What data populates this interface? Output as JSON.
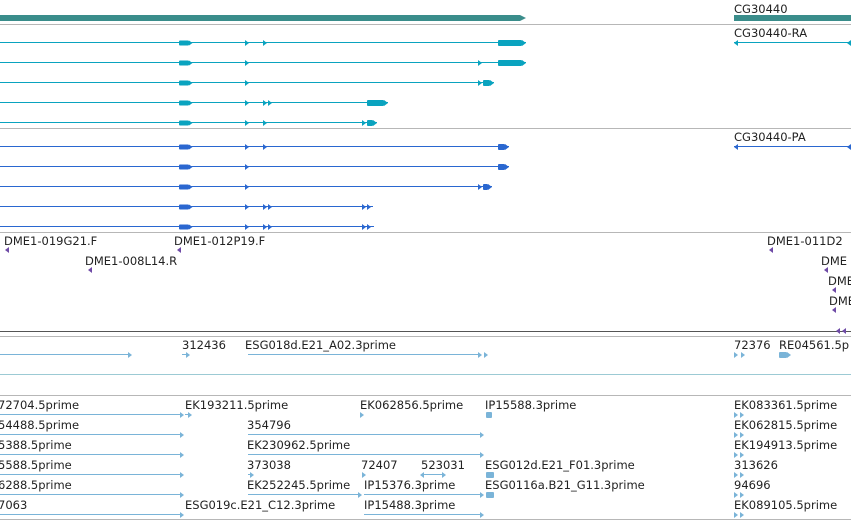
{
  "colors": {
    "gene": "#3a8d8b",
    "transcript_ra": "#0aa3bf",
    "transcript_pa": "#2a67d0",
    "clone": "#6e4aa6",
    "est": "#7ab4d8",
    "divider": "#b7b7b7",
    "divider_dark": "#555555",
    "divider_est": "#9ccad4"
  },
  "gene_track": {
    "label": "CG30440"
  },
  "transcript_track_ra": {
    "label": "CG30440-RA"
  },
  "transcript_track_pa": {
    "label": "CG30440-PA"
  },
  "clone_track": {
    "labels": [
      "DME1-019G21.F",
      "DME1-012P19.F",
      "DME1-011D2",
      "DME1-008L14.R",
      "DME",
      "DME",
      "DME"
    ]
  },
  "est_track": {
    "labels": [
      "312436",
      "ESG018d.E21_A02.3prime",
      "72376",
      "RE04561.5p",
      "72704.5prime",
      "EK193211.5prime",
      "EK062856.5prime",
      "IP15588.3prime",
      "EK083361.5prime",
      "54488.5prime",
      "354796",
      "EK062815.5prime",
      "5388.5prime",
      "EK230962.5prime",
      "EK194913.5prime",
      "5588.5prime",
      "373038",
      "72407",
      "523031",
      "ESG012d.E21_F01.3prime",
      "313626",
      "6288.5prime",
      "EK252245.5prime",
      "IP15376.3prime",
      "ESG0116a.B21_G11.3prime",
      "94696",
      "7063",
      "ESG019c.E21_C12.3prime",
      "IP15488.3prime",
      "EK089105.5prime"
    ]
  }
}
